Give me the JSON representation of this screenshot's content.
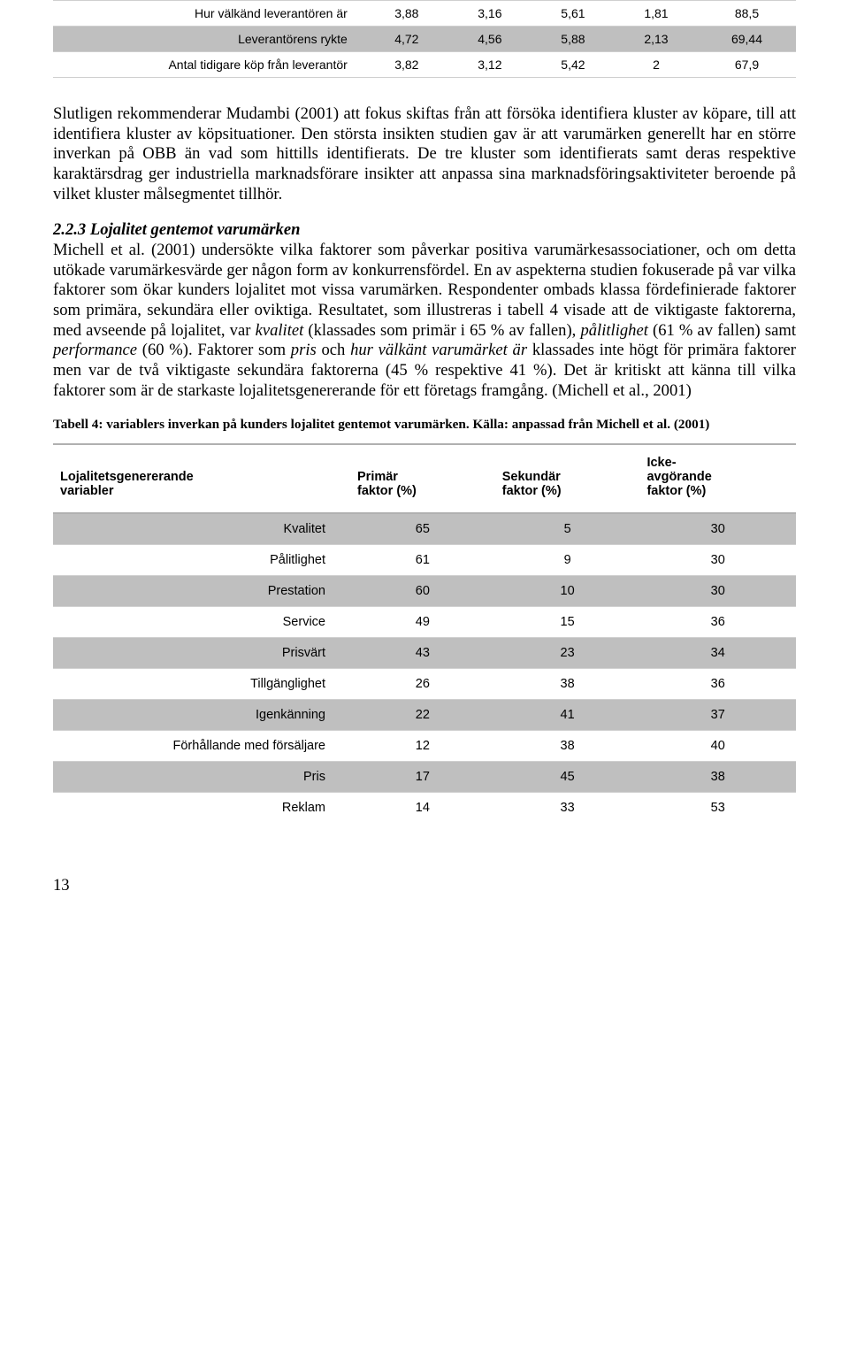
{
  "table1": {
    "rows": [
      {
        "label": "Hur välkänd leverantören är",
        "c1": "3,88",
        "c2": "3,16",
        "c3": "5,61",
        "c4": "1,81",
        "c5": "88,5",
        "grey": false
      },
      {
        "label": "Leverantörens rykte",
        "c1": "4,72",
        "c2": "4,56",
        "c3": "5,88",
        "c4": "2,13",
        "c5": "69,44",
        "grey": true
      },
      {
        "label": "Antal tidigare köp från leverantör",
        "c1": "3,82",
        "c2": "3,12",
        "c3": "5,42",
        "c4": "2",
        "c5": "67,9",
        "grey": false
      }
    ]
  },
  "para1": "Slutligen rekommenderar Mudambi (2001) att fokus skiftas från att försöka identifiera kluster av köpare, till att identifiera kluster av köpsituationer. Den största insikten studien gav är att varumärken generellt har en större inverkan på OBB än vad som hittills identifierats. De tre kluster som identifierats samt deras respektive karaktärsdrag ger industriella marknadsförare insikter att anpassa sina marknadsföringsaktiviteter beroende på vilket kluster målsegmentet tillhör.",
  "section_heading": "2.2.3 Lojalitet gentemot varumärken",
  "para2_parts": {
    "a": "Michell et al. (2001) undersökte vilka faktorer som påverkar positiva varumärkesassociationer, och om detta utökade varumärkesvärde ger någon form av konkurrensfördel. En av aspekterna studien fokuserade på var vilka faktorer som ökar kunders lojalitet mot vissa varumärken. Respondenter ombads klassa fördefinierade faktorer som primära, sekundära eller oviktiga. Resultatet, som illustreras i tabell 4 visade att de viktigaste faktorerna, med avseende på lojalitet, var ",
    "i1": "kvalitet",
    "b": " (klassades som primär i 65 % av fallen), ",
    "i2": "pålitlighet",
    "c": " (61 % av fallen) samt ",
    "i3": "performance",
    "d": " (60 %). Faktorer som ",
    "i4": "pris",
    "e": " och ",
    "i5": "hur välkänt varumärket är",
    "f": " klassades inte högt för primära faktorer men var de två viktigaste sekundära faktorerna (45 % respektive 41 %). Det är kritiskt att känna till vilka faktorer som är de starkaste lojalitetsgenererande för ett företags framgång. (Michell et al., 2001)"
  },
  "table2_caption": "Tabell 4: variablers inverkan på kunders lojalitet gentemot varumärken. Källa: anpassad från Michell et al. (2001)",
  "table2": {
    "headers": {
      "h1a": "Lojalitetsgenererande",
      "h1b": "variabler",
      "h2a": "Primär",
      "h2b": "faktor (%)",
      "h3a": "Sekundär",
      "h3b": "faktor (%)",
      "h4a": "Icke-",
      "h4b": "avgörande",
      "h4c": "faktor (%)"
    },
    "rows": [
      {
        "label": "Kvalitet",
        "p": "65",
        "s": "5",
        "i": "30",
        "grey": true
      },
      {
        "label": "Pålitlighet",
        "p": "61",
        "s": "9",
        "i": "30",
        "grey": false
      },
      {
        "label": "Prestation",
        "p": "60",
        "s": "10",
        "i": "30",
        "grey": true
      },
      {
        "label": "Service",
        "p": "49",
        "s": "15",
        "i": "36",
        "grey": false
      },
      {
        "label": "Prisvärt",
        "p": "43",
        "s": "23",
        "i": "34",
        "grey": true
      },
      {
        "label": "Tillgänglighet",
        "p": "26",
        "s": "38",
        "i": "36",
        "grey": false
      },
      {
        "label": "Igenkänning",
        "p": "22",
        "s": "41",
        "i": "37",
        "grey": true
      },
      {
        "label": "Förhållande med försäljare",
        "p": "12",
        "s": "38",
        "i": "40",
        "grey": false
      },
      {
        "label": "Pris",
        "p": "17",
        "s": "45",
        "i": "38",
        "grey": true
      },
      {
        "label": "Reklam",
        "p": "14",
        "s": "33",
        "i": "53",
        "grey": false
      }
    ]
  },
  "page_number": "13"
}
